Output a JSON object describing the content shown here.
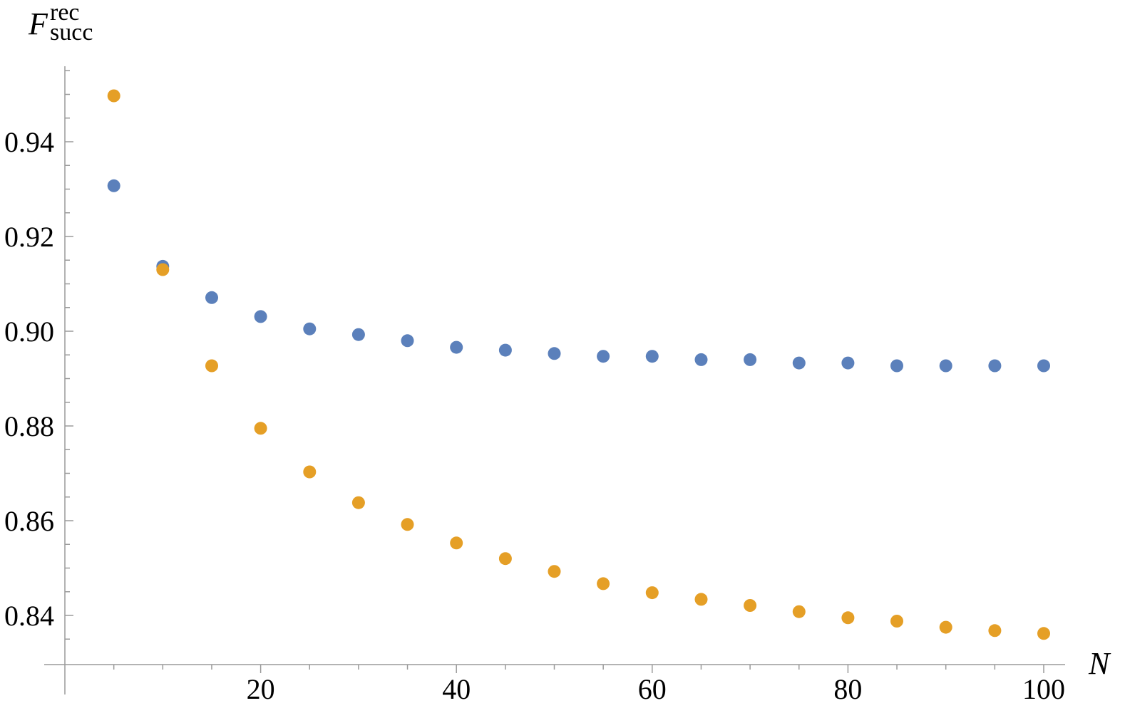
{
  "chart_data": {
    "type": "scatter",
    "title": "",
    "xlabel": "N",
    "ylabel": {
      "main": "F",
      "superscript": "rec",
      "subscript": "succ"
    },
    "xlim": [
      0,
      101
    ],
    "ylim": [
      0.83,
      0.955
    ],
    "x_ticks": [
      20,
      40,
      60,
      80,
      100
    ],
    "y_ticks": [
      0.84,
      0.86,
      0.88,
      0.9,
      0.92,
      0.94
    ],
    "y_tick_labels": [
      "0.84",
      "0.86",
      "0.88",
      "0.90",
      "0.92",
      "0.94"
    ],
    "x_tick_labels": [
      "20",
      "40",
      "60",
      "80",
      "100"
    ],
    "grid": false,
    "x": [
      5,
      10,
      15,
      20,
      25,
      30,
      35,
      40,
      45,
      50,
      55,
      60,
      65,
      70,
      75,
      80,
      85,
      90,
      95,
      100
    ],
    "series": [
      {
        "color": "#5b80bb",
        "values": [
          0.9307,
          0.9137,
          0.9071,
          0.9031,
          0.9005,
          0.8993,
          0.898,
          0.8966,
          0.896,
          0.8953,
          0.8947,
          0.8947,
          0.894,
          0.894,
          0.8933,
          0.8933,
          0.8927,
          0.8927,
          0.8927,
          0.8927
        ]
      },
      {
        "color": "#e59f26",
        "values": [
          0.9497,
          0.913,
          0.8927,
          0.8795,
          0.8703,
          0.8638,
          0.8592,
          0.8553,
          0.852,
          0.8493,
          0.8467,
          0.8448,
          0.8434,
          0.8421,
          0.8408,
          0.8395,
          0.8388,
          0.8375,
          0.8368,
          0.8362
        ]
      }
    ]
  }
}
